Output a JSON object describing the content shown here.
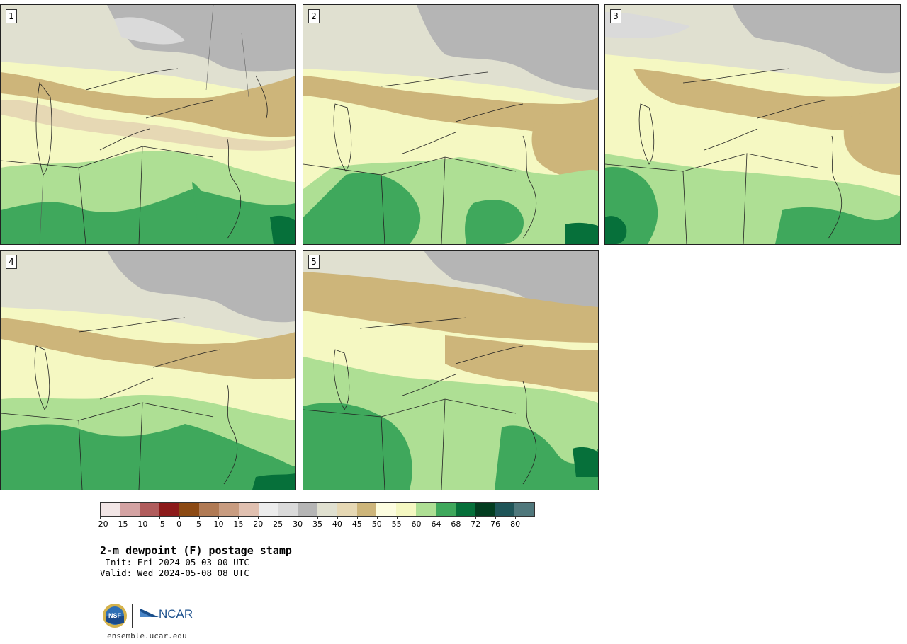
{
  "panels": [
    {
      "label": "1"
    },
    {
      "label": "2"
    },
    {
      "label": "3"
    },
    {
      "label": "4"
    },
    {
      "label": "5"
    }
  ],
  "colorbar": {
    "colors": [
      "#f2e6e6",
      "#d4a3a3",
      "#b05c5c",
      "#8c1a1a",
      "#8c4a14",
      "#b07a54",
      "#c89c80",
      "#e0c0b0",
      "#ececec",
      "#dadada",
      "#b5b5b5",
      "#e0e0d0",
      "#e6d8b4",
      "#cdb57a",
      "#fdfde0",
      "#f5f8c2",
      "#aedf94",
      "#3fa85c",
      "#06703a",
      "#033d20",
      "#1f5558",
      "#50787c"
    ],
    "ticks": [
      "−20",
      "−15",
      "−10",
      "−5",
      "0",
      "5",
      "10",
      "15",
      "20",
      "25",
      "30",
      "35",
      "40",
      "45",
      "50",
      "55",
      "60",
      "64",
      "68",
      "72",
      "76",
      "80"
    ]
  },
  "title": "2-m dewpoint (F) postage stamp",
  "init": " Init: Fri 2024-05-03 00 UTC",
  "valid": "Valid: Wed 2024-05-08 08 UTC",
  "logos": {
    "nsf": "NSF",
    "ncar": "NCAR"
  },
  "site": "ensemble.ucar.edu"
}
